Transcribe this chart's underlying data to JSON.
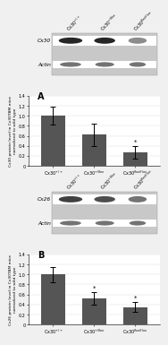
{
  "panel_A": {
    "label": "A",
    "wb_label_1": "Cx30",
    "wb_label_2": "Actin",
    "bar_values": [
      1.0,
      0.62,
      0.27
    ],
    "bar_errors": [
      0.18,
      0.22,
      0.12
    ],
    "bar_color": "#555555",
    "categories": [
      "Cx30$^{+/+}$",
      "Cx30$^{+/flox}$",
      "Cx30$^{flox/flox}$"
    ],
    "ylabel": "Cx30 protein level in Cx30TBM mice\nnormalized to wild type",
    "ylim": [
      0,
      1.4
    ],
    "yticks": [
      0,
      0.2,
      0.4,
      0.6,
      0.8,
      1.0,
      1.2,
      1.4
    ],
    "asterisk_idx": [
      2
    ],
    "asterisk_text": "*",
    "band1_intensities": [
      0.15,
      0.15,
      0.55
    ],
    "band2_intensities": [
      0.45,
      0.45,
      0.45
    ]
  },
  "panel_B": {
    "label": "B",
    "wb_label_1": "Cx26",
    "wb_label_2": "Actin",
    "bar_values": [
      1.0,
      0.52,
      0.35
    ],
    "bar_errors": [
      0.15,
      0.12,
      0.1
    ],
    "bar_color": "#555555",
    "categories": [
      "Cx30$^{+/+}$",
      "Cx30$^{+/flox}$",
      "Cx30$^{flox/flox}$"
    ],
    "ylabel": "Cx26 protein level in Cx30TBM mice\nnormalized to wild type",
    "ylim": [
      0,
      1.4
    ],
    "yticks": [
      0,
      0.2,
      0.4,
      0.6,
      0.8,
      1.0,
      1.2,
      1.4
    ],
    "asterisk_idx": [
      1,
      2
    ],
    "asterisk_text": "*",
    "band1_intensities": [
      0.25,
      0.3,
      0.45
    ],
    "band2_intensities": [
      0.45,
      0.45,
      0.45
    ]
  },
  "col_header_labels": [
    "Cx30$^{+/+}$",
    "Cx30$^{+/flox}$",
    "Cx30$^{flox/flox}$"
  ],
  "figure_bg": "#f0f0f0"
}
